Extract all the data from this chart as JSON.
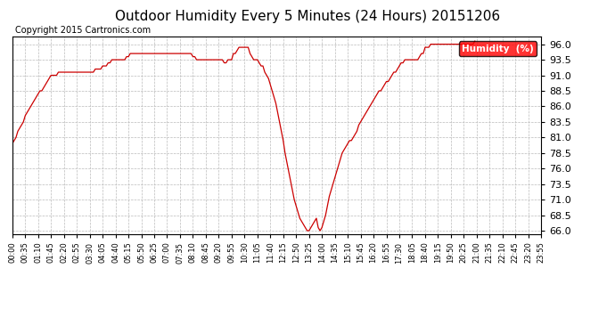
{
  "title": "Outdoor Humidity Every 5 Minutes (24 Hours) 20151206",
  "copyright": "Copyright 2015 Cartronics.com",
  "legend_label": "Humidity  (%)",
  "line_color": "#cc0000",
  "background_color": "#ffffff",
  "plot_bg_color": "#ffffff",
  "grid_color": "#bbbbbb",
  "ylim": [
    65.5,
    97.2
  ],
  "yticks": [
    66.0,
    68.5,
    71.0,
    73.5,
    76.0,
    78.5,
    81.0,
    83.5,
    86.0,
    88.5,
    91.0,
    93.5,
    96.0
  ],
  "humidity_data": [
    80.0,
    80.5,
    81.0,
    82.0,
    82.5,
    83.0,
    83.5,
    84.5,
    85.0,
    85.5,
    86.0,
    86.5,
    87.0,
    87.5,
    88.0,
    88.5,
    88.5,
    89.0,
    89.5,
    90.0,
    90.5,
    91.0,
    91.0,
    91.0,
    91.0,
    91.5,
    91.5,
    91.5,
    91.5,
    91.5,
    91.5,
    91.5,
    91.5,
    91.5,
    91.5,
    91.5,
    91.5,
    91.5,
    91.5,
    91.5,
    91.5,
    91.5,
    91.5,
    91.5,
    91.5,
    92.0,
    92.0,
    92.0,
    92.0,
    92.5,
    92.5,
    92.5,
    93.0,
    93.0,
    93.5,
    93.5,
    93.5,
    93.5,
    93.5,
    93.5,
    93.5,
    93.5,
    94.0,
    94.0,
    94.5,
    94.5,
    94.5,
    94.5,
    94.5,
    94.5,
    94.5,
    94.5,
    94.5,
    94.5,
    94.5,
    94.5,
    94.5,
    94.5,
    94.5,
    94.5,
    94.5,
    94.5,
    94.5,
    94.5,
    94.5,
    94.5,
    94.5,
    94.5,
    94.5,
    94.5,
    94.5,
    94.5,
    94.5,
    94.5,
    94.5,
    94.5,
    94.5,
    94.5,
    94.0,
    94.0,
    93.5,
    93.5,
    93.5,
    93.5,
    93.5,
    93.5,
    93.5,
    93.5,
    93.5,
    93.5,
    93.5,
    93.5,
    93.5,
    93.5,
    93.5,
    93.0,
    93.0,
    93.5,
    93.5,
    93.5,
    94.5,
    94.5,
    95.0,
    95.5,
    95.5,
    95.5,
    95.5,
    95.5,
    95.5,
    94.5,
    94.0,
    93.5,
    93.5,
    93.5,
    93.0,
    92.5,
    92.5,
    91.5,
    91.0,
    90.5,
    89.5,
    88.5,
    87.5,
    86.5,
    85.0,
    83.5,
    82.0,
    80.5,
    78.5,
    77.0,
    75.5,
    74.0,
    72.5,
    71.0,
    70.0,
    69.0,
    68.0,
    67.5,
    67.0,
    66.5,
    66.0,
    66.0,
    66.5,
    67.0,
    67.5,
    68.0,
    66.5,
    66.0,
    66.5,
    67.5,
    68.5,
    70.0,
    71.5,
    72.5,
    73.5,
    74.5,
    75.5,
    76.5,
    77.5,
    78.5,
    79.0,
    79.5,
    80.0,
    80.5,
    80.5,
    81.0,
    81.5,
    82.0,
    83.0,
    83.5,
    84.0,
    84.5,
    85.0,
    85.5,
    86.0,
    86.5,
    87.0,
    87.5,
    88.0,
    88.5,
    88.5,
    89.0,
    89.5,
    90.0,
    90.0,
    90.5,
    91.0,
    91.5,
    91.5,
    92.0,
    92.5,
    93.0,
    93.0,
    93.5,
    93.5,
    93.5,
    93.5,
    93.5,
    93.5,
    93.5,
    93.5,
    94.0,
    94.5,
    94.5,
    95.5,
    95.5,
    95.5,
    96.0,
    96.0,
    96.0,
    96.0,
    96.0,
    96.0,
    96.0,
    96.0,
    96.0,
    96.0,
    96.0,
    96.0,
    96.0,
    96.0,
    96.0,
    96.0,
    96.0,
    96.0,
    96.0,
    96.0,
    96.0,
    96.0,
    96.0,
    96.0,
    96.5
  ],
  "xtick_labels": [
    "00:00",
    "00:35",
    "01:10",
    "01:45",
    "02:20",
    "02:55",
    "03:30",
    "04:05",
    "04:40",
    "05:15",
    "05:50",
    "06:25",
    "07:00",
    "07:35",
    "08:10",
    "08:45",
    "09:20",
    "09:55",
    "10:30",
    "11:05",
    "11:40",
    "12:15",
    "12:50",
    "13:25",
    "14:00",
    "14:35",
    "15:10",
    "15:45",
    "16:20",
    "16:55",
    "17:30",
    "18:05",
    "18:40",
    "19:15",
    "19:50",
    "20:25",
    "21:00",
    "21:35",
    "22:10",
    "22:45",
    "23:20",
    "23:55"
  ],
  "xtick_positions_ratio": [
    0,
    7,
    14,
    21,
    28,
    35,
    42,
    49,
    56,
    63,
    70,
    77,
    84,
    91,
    98,
    105,
    112,
    119,
    126,
    133,
    140,
    147,
    154,
    161,
    168,
    175,
    182,
    189,
    196,
    203,
    210,
    217,
    224,
    231,
    238,
    245,
    252,
    259,
    266,
    273,
    280,
    287
  ],
  "title_fontsize": 11,
  "copyright_fontsize": 7,
  "ytick_fontsize": 8,
  "xtick_fontsize": 6
}
